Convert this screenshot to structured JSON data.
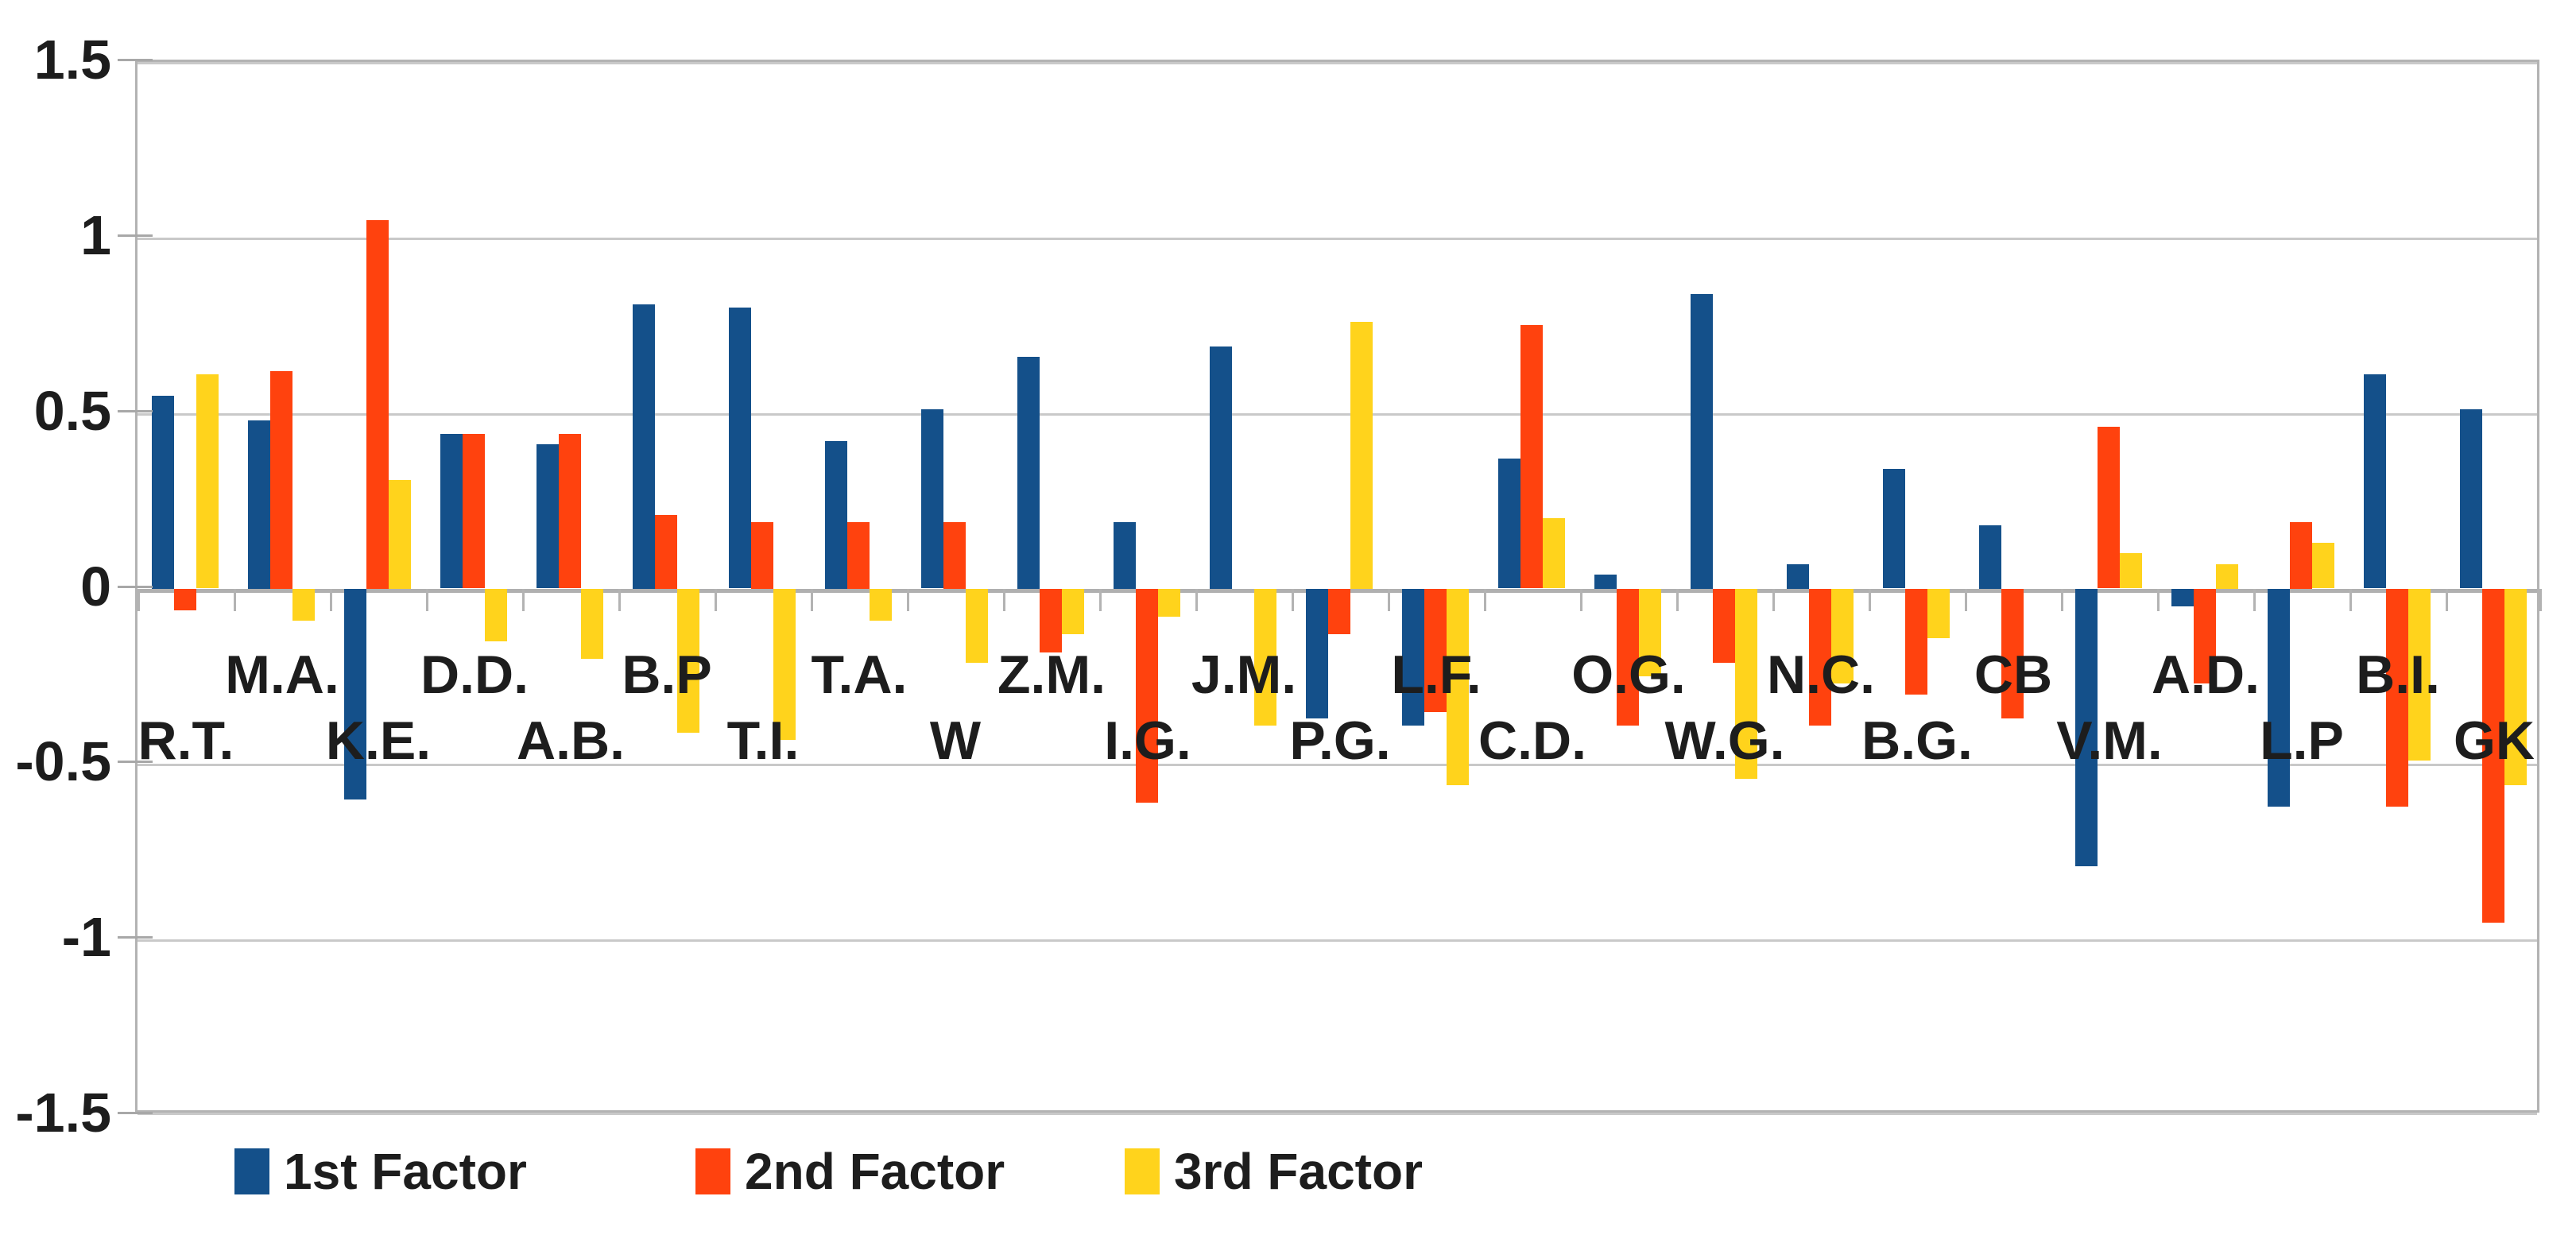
{
  "chart_data": {
    "type": "bar",
    "title": "",
    "categories": [
      "R.T.",
      "M.A.",
      "K.E.",
      "D.D.",
      "A.B.",
      "B.P",
      "T.I.",
      "T.A.",
      "W",
      "Z.M.",
      "I.G.",
      "J.M.",
      "P.G.",
      "L.F.",
      "C.D.",
      "O.G.",
      "W.G.",
      "N.C.",
      "B.G.",
      "CB",
      "V.M.",
      "A.D.",
      "L.P",
      "B.I.",
      "GK"
    ],
    "series": [
      {
        "name": "1st Factor",
        "color": "#14508a",
        "values": [
          0.55,
          0.48,
          -0.6,
          0.44,
          0.41,
          0.81,
          0.8,
          0.42,
          0.51,
          0.66,
          0.19,
          0.69,
          -0.37,
          -0.39,
          0.37,
          0.04,
          0.84,
          0.07,
          0.34,
          0.18,
          -0.79,
          -0.05,
          -0.62,
          0.61,
          0.51
        ]
      },
      {
        "name": "2nd Factor",
        "color": "#ff420e",
        "values": [
          -0.06,
          0.62,
          1.05,
          0.44,
          0.44,
          0.21,
          0.19,
          0.19,
          0.19,
          -0.18,
          -0.61,
          0.0,
          -0.13,
          -0.35,
          0.75,
          -0.39,
          -0.21,
          -0.39,
          -0.3,
          -0.37,
          0.46,
          -0.27,
          0.19,
          -0.62,
          -0.95
        ]
      },
      {
        "name": "3rd Factor",
        "color": "#ffd31c",
        "values": [
          0.61,
          -0.09,
          0.31,
          -0.15,
          -0.2,
          -0.41,
          -0.43,
          -0.09,
          -0.21,
          -0.13,
          -0.08,
          -0.39,
          0.76,
          -0.56,
          0.2,
          -0.25,
          -0.54,
          -0.27,
          -0.14,
          0.0,
          0.1,
          0.07,
          0.13,
          -0.49,
          -0.56
        ]
      }
    ],
    "xlabel": "",
    "ylabel": "",
    "ylim": [
      -1.5,
      1.5
    ],
    "ytick_step": 0.5,
    "ytick_labels": [
      "1.5",
      "1",
      "0.5",
      "0",
      "-0.5",
      "-1",
      "-1.5"
    ],
    "grid": "horizontal",
    "legend_position": "bottom",
    "category_label_rows": "alternating-low-high",
    "colors": {
      "gridline": "#c9c9c9",
      "zero_line": "#b0b0b0",
      "border": "#b3b3b3",
      "text": "#1d1d1d",
      "background": "#ffffff"
    }
  }
}
